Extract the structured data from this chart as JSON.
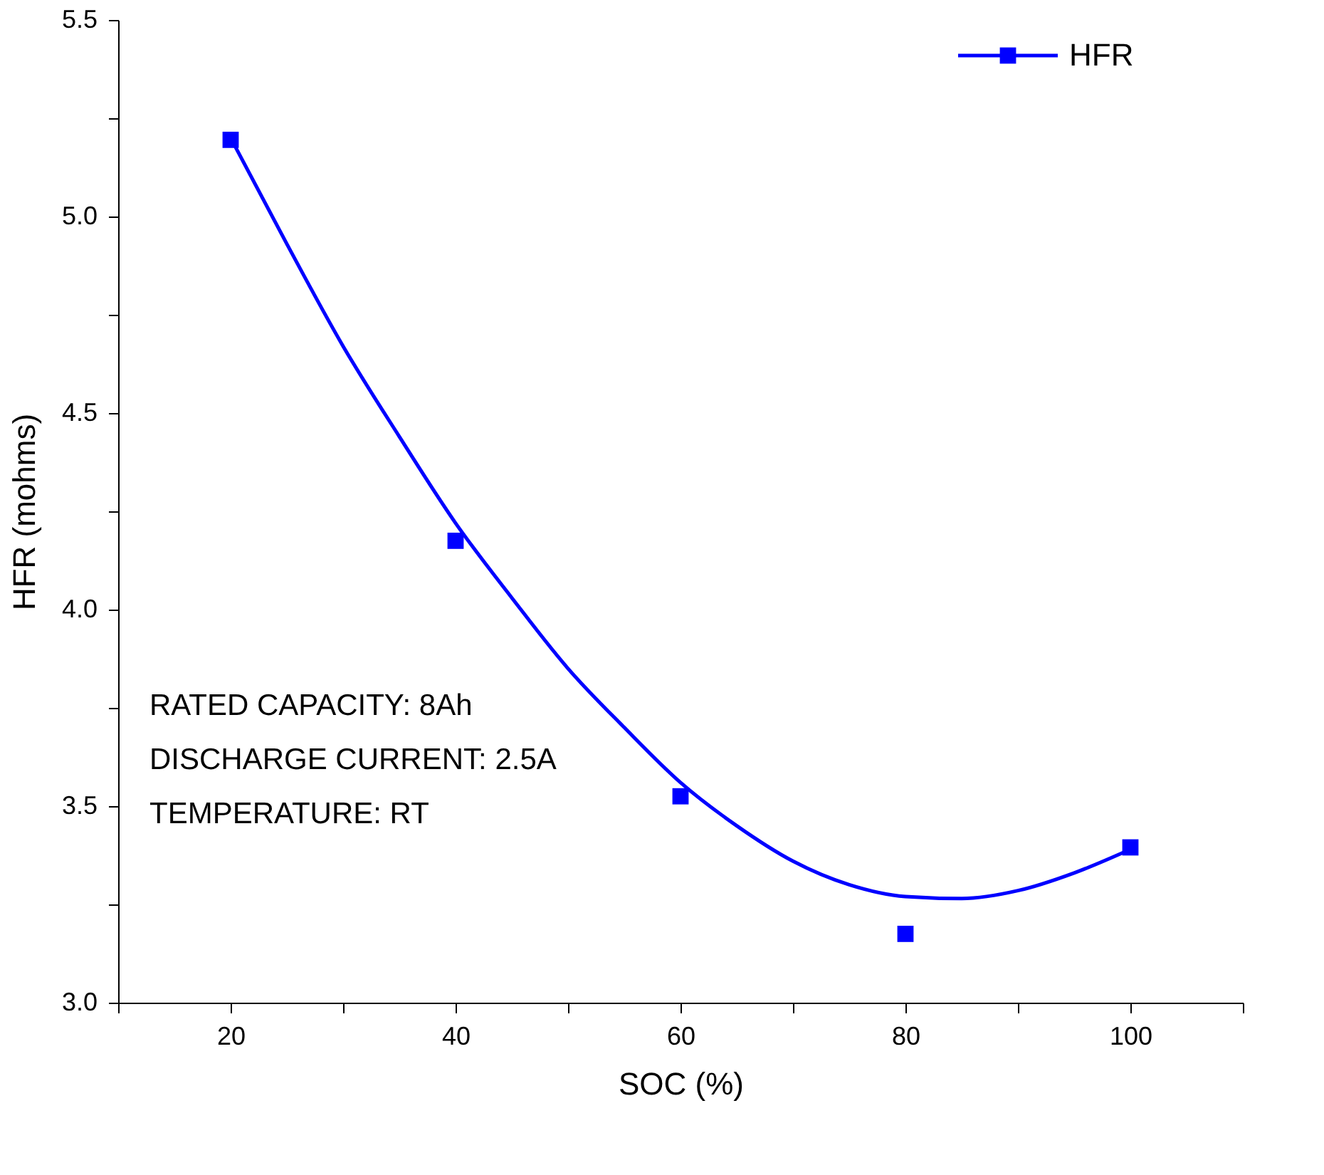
{
  "chart_data": {
    "type": "scatter",
    "xlabel": "SOC (%)",
    "ylabel": "HFR (mohms)",
    "x": [
      20,
      40,
      60,
      80,
      100
    ],
    "series": [
      {
        "name": "HFR",
        "color": "#0000ff",
        "marker": "square",
        "values": [
          5.195,
          4.175,
          3.525,
          3.175,
          3.395
        ]
      },
      {
        "type": "line",
        "color": "#0000ff",
        "x": [
          20,
          25,
          30,
          35,
          40,
          45,
          50,
          55,
          60,
          65,
          70,
          75,
          80,
          85,
          90,
          95,
          100
        ],
        "values": [
          5.2,
          4.93,
          4.67,
          4.44,
          4.22,
          4.03,
          3.85,
          3.7,
          3.56,
          3.45,
          3.36,
          3.3,
          3.27,
          3.265,
          3.285,
          3.33,
          3.39
        ]
      }
    ],
    "xlim": [
      10,
      110
    ],
    "xticks": [
      {
        "value": 10,
        "label": null
      },
      20,
      {
        "value": 30,
        "label": null
      },
      40,
      {
        "value": 50,
        "label": null
      },
      60,
      {
        "value": 70,
        "label": null
      },
      80,
      {
        "value": 90,
        "label": null
      },
      100,
      {
        "value": 110,
        "label": null
      }
    ],
    "ylim": [
      3.0,
      5.5
    ],
    "yticks": [
      {
        "value": 3.0,
        "label": "3.0"
      },
      {
        "value": 3.25,
        "label": null
      },
      {
        "value": 3.5,
        "label": "3.5"
      },
      {
        "value": 3.75,
        "label": null
      },
      {
        "value": 4.0,
        "label": "4.0"
      },
      {
        "value": 4.25,
        "label": null
      },
      {
        "value": 4.5,
        "label": "4.5"
      },
      {
        "value": 4.75,
        "label": null
      },
      {
        "value": 5.0,
        "label": "5.0"
      },
      {
        "value": 5.25,
        "label": null
      },
      {
        "value": 5.5,
        "label": "5.5"
      }
    ],
    "annotations": [
      "RATED CAPACITY: 8Ah",
      "DISCHARGE CURRENT: 2.5A",
      "TEMPERATURE: RT"
    ],
    "legend": "top right",
    "grid": false
  }
}
